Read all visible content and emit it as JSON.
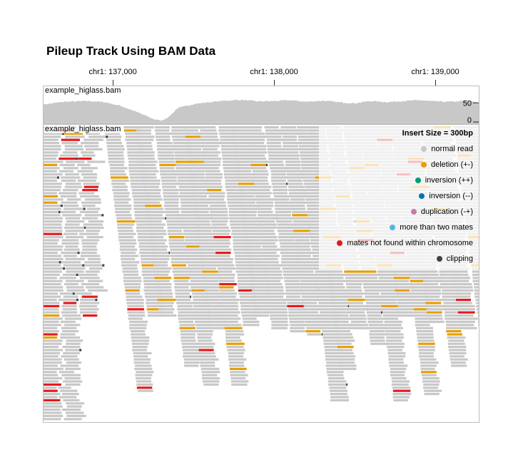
{
  "title": "Pileup Track Using BAM Data",
  "axis": {
    "ticks": [
      {
        "label": "chr1: 137,000",
        "value": 137000
      },
      {
        "label": "chr1: 138,000",
        "value": 138000
      },
      {
        "label": "chr1: 139,000",
        "value": 139000
      }
    ]
  },
  "coverage_track": {
    "label": "example_higlass.bam",
    "y_ticks": [
      "50",
      "0"
    ]
  },
  "pileup_track": {
    "label": "example_higlass.bam"
  },
  "legend": {
    "title": "Insert Size = 300bp",
    "items": [
      {
        "label": "normal read",
        "color": "#c8c8c8"
      },
      {
        "label": "deletion (+-)",
        "color": "#e69f00"
      },
      {
        "label": "inversion (++)",
        "color": "#009e73"
      },
      {
        "label": "inversion (--)",
        "color": "#0072b2"
      },
      {
        "label": "duplication (-+)",
        "color": "#cc79a7"
      },
      {
        "label": "more than two mates",
        "color": "#56b4e9"
      },
      {
        "label": "mates not found within chromosome",
        "color": "#e41a1c"
      },
      {
        "label": "clipping",
        "color": "#414141"
      }
    ]
  },
  "chart_data": {
    "type": "area",
    "title": "Pileup Track Using BAM Data",
    "x_domain": [
      136570,
      139270
    ],
    "coverage": {
      "x": [
        136570,
        136700,
        136850,
        136950,
        137050,
        137150,
        137250,
        137300,
        137350,
        137400,
        137500,
        137600,
        137700,
        137800,
        137900,
        138000,
        138100,
        138200,
        138300,
        138400,
        138500,
        138600,
        138700,
        138800,
        138900,
        139000,
        139100,
        139200,
        139270
      ],
      "y": [
        46,
        53,
        55,
        52,
        42,
        26,
        8,
        3,
        14,
        36,
        47,
        52,
        56,
        58,
        54,
        55,
        57,
        53,
        56,
        52,
        49,
        55,
        52,
        55,
        57,
        54,
        53,
        56,
        51
      ],
      "ylim": [
        0,
        90
      ]
    },
    "pileup": {
      "colors": {
        "normal": "#c8c8c8",
        "deletion": "#e69f00",
        "mates_not_found": "#e41a1c",
        "clipping": "#414141",
        "duplication": "#cc79a7"
      }
    }
  }
}
